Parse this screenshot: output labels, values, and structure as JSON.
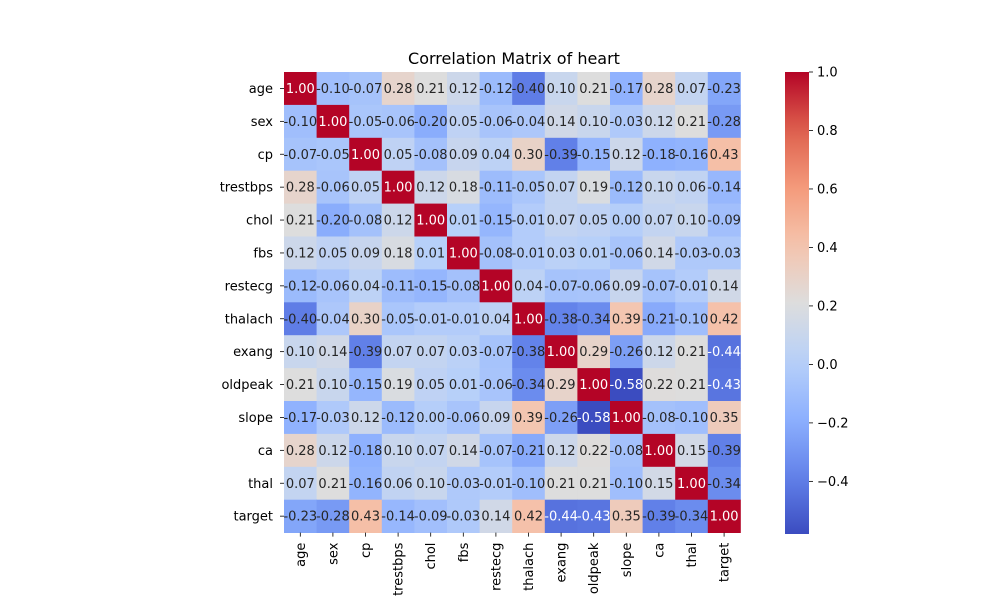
{
  "chart_data": {
    "type": "heatmap",
    "title": "Correlation Matrix of heart",
    "labels": [
      "age",
      "sex",
      "cp",
      "trestbps",
      "chol",
      "fbs",
      "restecg",
      "thalach",
      "exang",
      "oldpeak",
      "slope",
      "ca",
      "thal",
      "target"
    ],
    "values": [
      [
        1.0,
        -0.1,
        -0.07,
        0.28,
        0.21,
        0.12,
        -0.12,
        -0.4,
        0.1,
        0.21,
        -0.17,
        0.28,
        0.07,
        -0.23
      ],
      [
        -0.1,
        1.0,
        -0.05,
        -0.06,
        -0.2,
        0.05,
        -0.06,
        -0.04,
        0.14,
        0.1,
        -0.03,
        0.12,
        0.21,
        -0.28
      ],
      [
        -0.07,
        -0.05,
        1.0,
        0.05,
        -0.08,
        0.09,
        0.04,
        0.3,
        -0.39,
        -0.15,
        0.12,
        -0.18,
        -0.16,
        0.43
      ],
      [
        0.28,
        -0.06,
        0.05,
        1.0,
        0.12,
        0.18,
        -0.11,
        -0.05,
        0.07,
        0.19,
        -0.12,
        0.1,
        0.06,
        -0.14
      ],
      [
        0.21,
        -0.2,
        -0.08,
        0.12,
        1.0,
        0.01,
        -0.15,
        -0.01,
        0.07,
        0.05,
        -0.0,
        0.07,
        0.1,
        -0.09
      ],
      [
        0.12,
        0.05,
        0.09,
        0.18,
        0.01,
        1.0,
        -0.08,
        -0.01,
        0.03,
        0.01,
        -0.06,
        0.14,
        -0.03,
        -0.03
      ],
      [
        -0.12,
        -0.06,
        0.04,
        -0.11,
        -0.15,
        -0.08,
        1.0,
        0.04,
        -0.07,
        -0.06,
        0.09,
        -0.07,
        -0.01,
        0.14
      ],
      [
        -0.4,
        -0.04,
        0.3,
        -0.05,
        -0.01,
        -0.01,
        0.04,
        1.0,
        -0.38,
        -0.34,
        0.39,
        -0.21,
        -0.1,
        0.42
      ],
      [
        0.1,
        0.14,
        -0.39,
        0.07,
        0.07,
        0.03,
        -0.07,
        -0.38,
        1.0,
        0.29,
        -0.26,
        0.12,
        0.21,
        -0.44
      ],
      [
        0.21,
        0.1,
        -0.15,
        0.19,
        0.05,
        0.01,
        -0.06,
        -0.34,
        0.29,
        1.0,
        -0.58,
        0.22,
        0.21,
        -0.43
      ],
      [
        -0.17,
        -0.03,
        0.12,
        -0.12,
        -0.0,
        -0.06,
        0.09,
        0.39,
        -0.26,
        -0.58,
        1.0,
        -0.08,
        -0.1,
        0.35
      ],
      [
        0.28,
        0.12,
        -0.18,
        0.1,
        0.07,
        0.14,
        -0.07,
        -0.21,
        0.12,
        0.22,
        -0.08,
        1.0,
        0.15,
        -0.39
      ],
      [
        0.07,
        0.21,
        -0.16,
        0.06,
        0.1,
        -0.03,
        -0.01,
        -0.1,
        0.21,
        0.21,
        -0.1,
        0.15,
        1.0,
        -0.34
      ],
      [
        -0.23,
        -0.28,
        0.43,
        -0.14,
        -0.09,
        -0.03,
        0.14,
        0.42,
        -0.44,
        -0.43,
        0.35,
        -0.39,
        -0.34,
        1.0
      ]
    ],
    "colormap": "coolwarm",
    "vmin": -0.58,
    "vmax": 1.0,
    "colorbar_ticks": [
      1.0,
      0.8,
      0.6,
      0.4,
      0.2,
      0.0,
      -0.2,
      -0.4
    ],
    "colorbar_tick_labels": [
      "1.0",
      "0.8",
      "0.6",
      "0.4",
      "0.2",
      "0.0",
      "−0.2",
      "−0.4"
    ],
    "annotations": "values shown in each cell with two decimals",
    "legend": "colorbar at right"
  }
}
